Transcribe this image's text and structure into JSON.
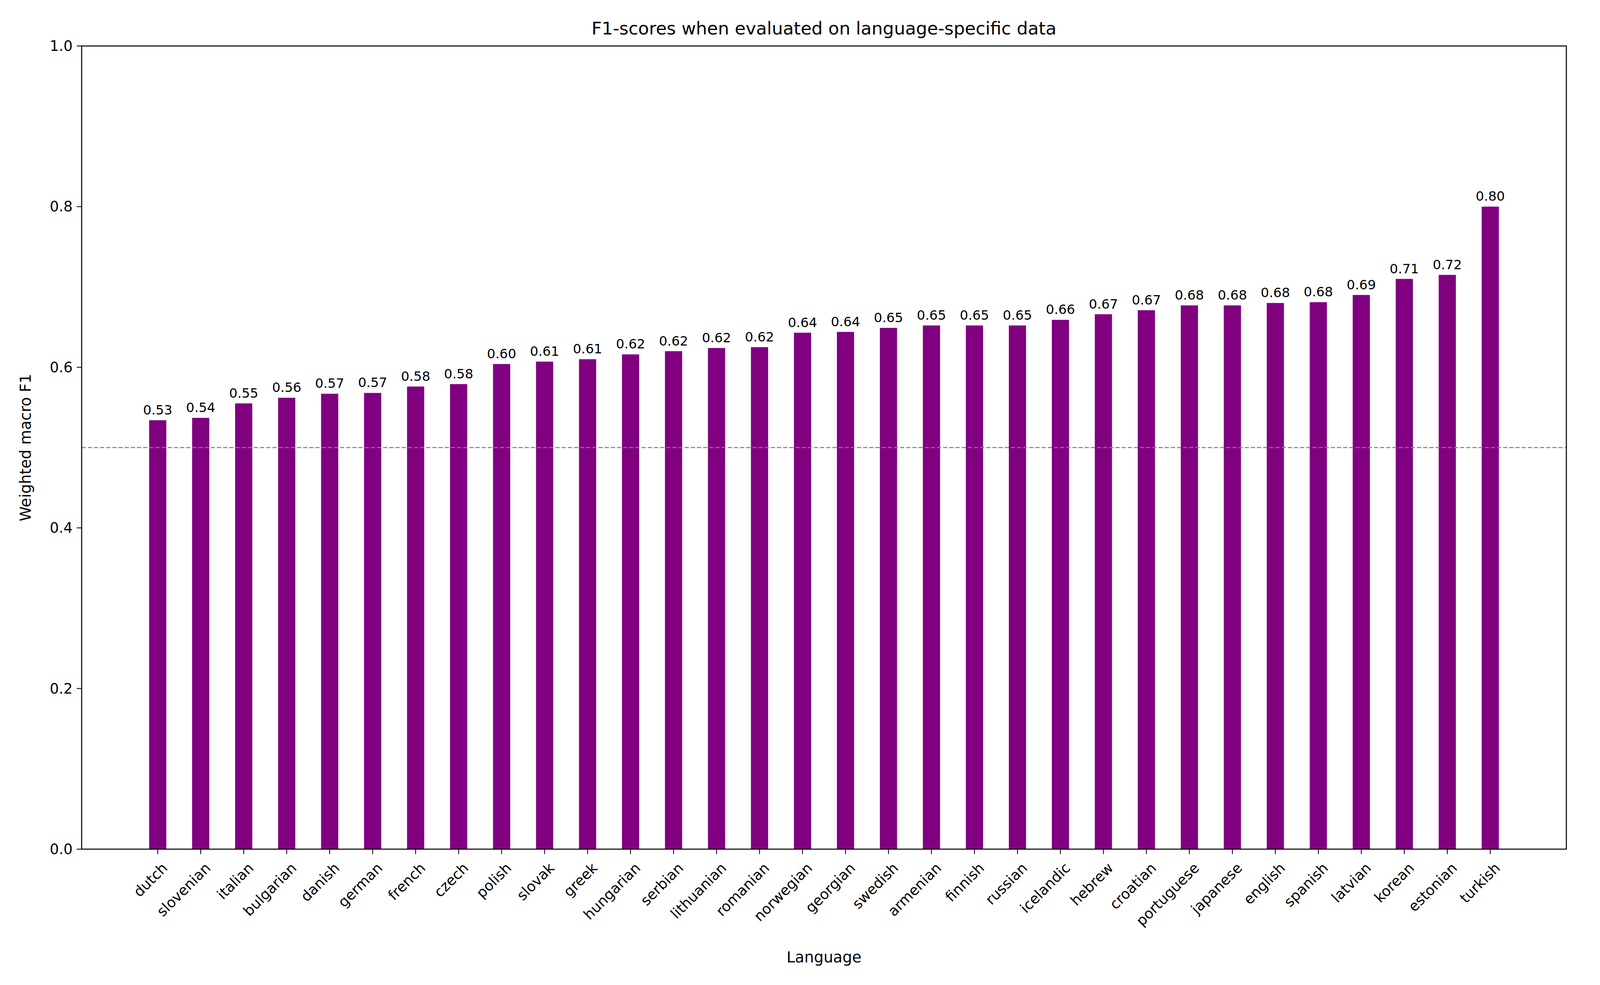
{
  "chart_data": {
    "type": "bar",
    "title": "F1-scores when evaluated on language-specific data",
    "x_label": "Language",
    "y_label": "Weighted macro F1",
    "categories": [
      "dutch",
      "slovenian",
      "italian",
      "bulgarian",
      "danish",
      "german",
      "french",
      "czech",
      "polish",
      "slovak",
      "greek",
      "hungarian",
      "serbian",
      "lithuanian",
      "romanian",
      "norwegian",
      "georgian",
      "swedish",
      "armenian",
      "finnish",
      "russian",
      "icelandic",
      "hebrew",
      "croatian",
      "portuguese",
      "japanese",
      "english",
      "spanish",
      "latvian",
      "korean",
      "estonian",
      "turkish"
    ],
    "values": [
      0.534,
      0.537,
      0.555,
      0.562,
      0.567,
      0.568,
      0.576,
      0.579,
      0.604,
      0.607,
      0.61,
      0.616,
      0.62,
      0.624,
      0.625,
      0.643,
      0.644,
      0.649,
      0.652,
      0.652,
      0.652,
      0.659,
      0.666,
      0.671,
      0.677,
      0.677,
      0.68,
      0.681,
      0.69,
      0.71,
      0.715,
      0.8
    ],
    "value_labels": [
      "0.53",
      "0.54",
      "0.55",
      "0.56",
      "0.57",
      "0.57",
      "0.58",
      "0.58",
      "0.60",
      "0.61",
      "0.61",
      "0.62",
      "0.62",
      "0.62",
      "0.62",
      "0.64",
      "0.64",
      "0.65",
      "0.65",
      "0.65",
      "0.65",
      "0.66",
      "0.67",
      "0.67",
      "0.68",
      "0.68",
      "0.68",
      "0.68",
      "0.69",
      "0.71",
      "0.72",
      "0.80"
    ],
    "data_labels": true,
    "color": "#800080",
    "ylim": [
      0,
      1
    ],
    "yticks": [
      {
        "value": 0,
        "label": "0.0"
      },
      0.2,
      0.4,
      0.6,
      0.8,
      {
        "value": 1,
        "label": "1.0"
      }
    ],
    "hline": 0.5,
    "grid": false
  }
}
